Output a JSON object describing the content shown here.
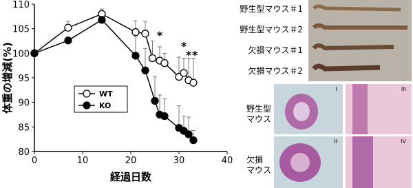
{
  "chart_data": {
    "type": "line",
    "xlabel": "経過日数",
    "ylabel": "体重の増減(%)",
    "xlim": [
      0,
      40
    ],
    "xticks": [
      0,
      10,
      20,
      30,
      40
    ],
    "ylim": [
      80,
      110
    ],
    "yticks": [
      80,
      85,
      90,
      95,
      100,
      105,
      110
    ],
    "legend": "center left",
    "series": [
      {
        "name": "WT",
        "color": "#000000",
        "marker_fill": "#ffffff",
        "x": [
          0,
          7,
          14,
          21,
          23,
          24.5,
          26,
          27,
          30,
          31,
          32,
          33
        ],
        "values": [
          100,
          105.2,
          108,
          104.3,
          104,
          99,
          98.5,
          98,
          95.2,
          96,
          94.5,
          94
        ],
        "errors": [
          0,
          1.3,
          1,
          2.3,
          2.5,
          3.5,
          2.8,
          2,
          4,
          3,
          4.5,
          5
        ]
      },
      {
        "name": "KO",
        "color": "#000000",
        "marker_fill": "#000000",
        "x": [
          0,
          7,
          14,
          21,
          23,
          25,
          26,
          27,
          30,
          31,
          32,
          33
        ],
        "values": [
          100,
          102.6,
          106.8,
          99.5,
          96.5,
          90.3,
          87.5,
          87.2,
          84.8,
          84.2,
          83.5,
          82.3
        ],
        "errors": [
          0,
          0,
          0,
          4,
          4.5,
          5,
          4,
          3.5,
          4.5,
          3,
          3.5,
          2
        ]
      }
    ],
    "annotations": [
      {
        "text": "*",
        "x": 26,
        "y": 104
      },
      {
        "text": "*",
        "x": 31,
        "y": 101.8
      },
      {
        "text": "*",
        "x": 32,
        "y": 100
      },
      {
        "text": "*",
        "x": 33.3,
        "y": 100
      }
    ]
  },
  "photo_labels": [
    "野生型マウス＃1",
    "野生型マウス＃2",
    "欠損マウス＃1",
    "欠損マウス＃2"
  ],
  "histology": {
    "rows": [
      [
        "野生型",
        "マウス"
      ],
      [
        "欠損",
        "マウス"
      ]
    ],
    "panels": [
      "I",
      "III",
      "II",
      "IV"
    ]
  }
}
